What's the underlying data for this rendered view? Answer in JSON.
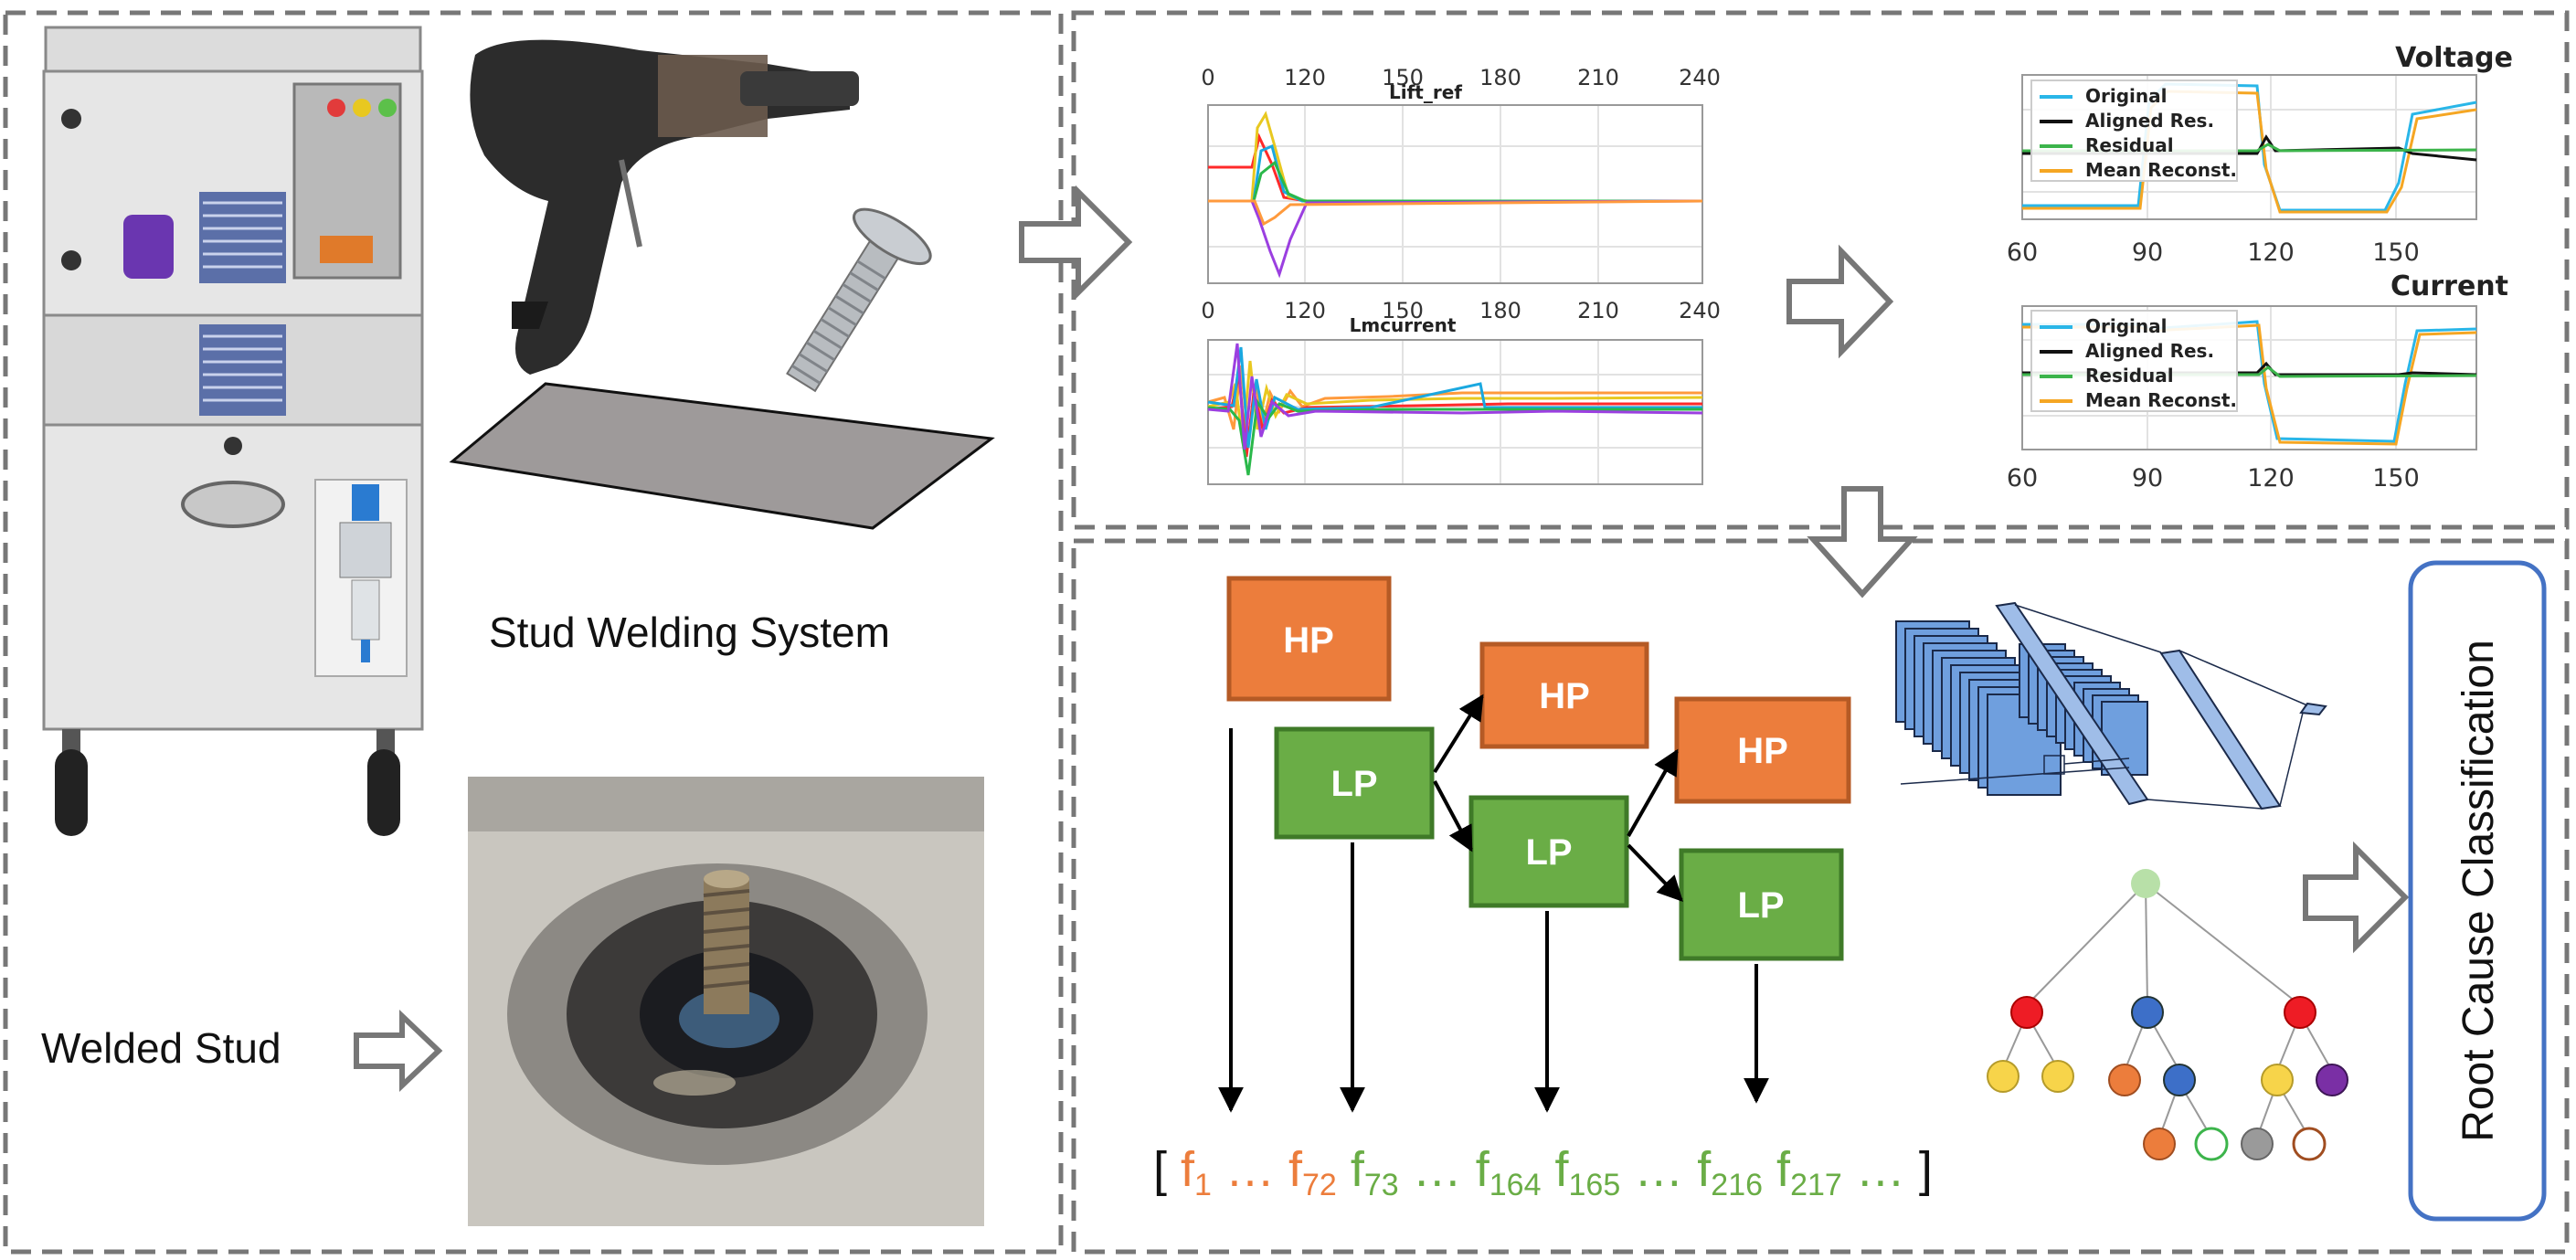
{
  "labels": {
    "stud_welding_system": "Stud Welding System",
    "welded_stud": "Welded Stud",
    "root_cause": "Root Cause Classification"
  },
  "plots_left": {
    "top_title": "Lift_ref",
    "bottom_title": "Lmcurrent",
    "xticks": [
      "0",
      "120",
      "150",
      "180",
      "210",
      "240"
    ]
  },
  "plots_right": {
    "voltage_title": "Voltage",
    "current_title": "Current",
    "xticks": [
      "60",
      "90",
      "120",
      "150"
    ],
    "legend": [
      "Original",
      "Aligned Res.",
      "Residual",
      "Mean Reconst."
    ],
    "legend_colors": [
      "#29b6e8",
      "#111111",
      "#3cb44b",
      "#f5a623"
    ]
  },
  "wavelet": {
    "hp_label": "HP",
    "lp_label": "LP",
    "hp_color": "#ec7d3c",
    "lp_color": "#6aad46"
  },
  "features": {
    "open": "[",
    "close": "]",
    "ellipsis": "…",
    "items": [
      {
        "base": "f",
        "sub": "1",
        "color": "#ec7d3c"
      },
      {
        "base": "f",
        "sub": "72",
        "color": "#ec7d3c"
      },
      {
        "base": "f",
        "sub": "73",
        "color": "#6aad46"
      },
      {
        "base": "f",
        "sub": "164",
        "color": "#6aad46"
      },
      {
        "base": "f",
        "sub": "165",
        "color": "#6aad46"
      },
      {
        "base": "f",
        "sub": "216",
        "color": "#6aad46"
      },
      {
        "base": "f",
        "sub": "217",
        "color": "#6aad46"
      }
    ]
  }
}
